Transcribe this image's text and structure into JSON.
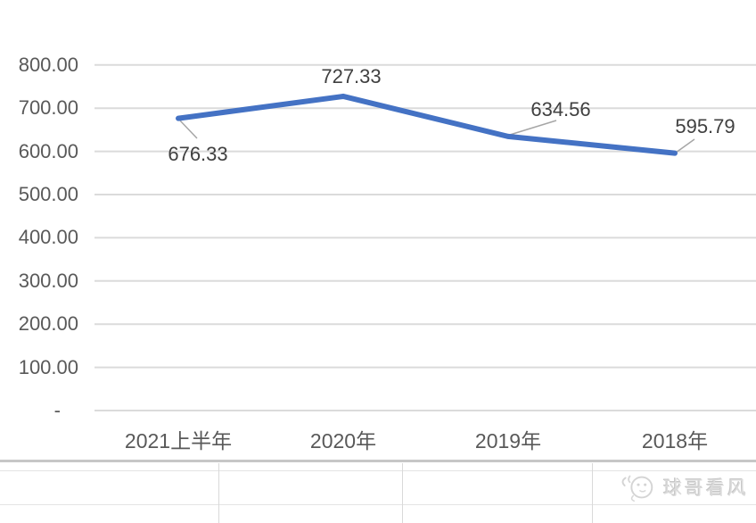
{
  "chart_data": {
    "type": "line",
    "title": "",
    "categories": [
      "2021上半年",
      "2020年",
      "2019年",
      "2018年"
    ],
    "series": [
      {
        "name": "",
        "values": [
          676.33,
          727.33,
          634.56,
          595.79
        ]
      }
    ],
    "data_labels": [
      "676.33",
      "727.33",
      "634.56",
      "595.79"
    ],
    "y_axis": {
      "tick_labels": [
        "800.00",
        "700.00",
        "600.00",
        "500.00",
        "400.00",
        "300.00",
        "200.00",
        "100.00",
        "-"
      ],
      "min": 0,
      "max": 800,
      "interval": 100
    },
    "x_axis": {
      "tick_labels": [
        "2021上半年",
        "2020年",
        "2019年",
        "2018年"
      ]
    },
    "grid": "horizontal",
    "legend": "none",
    "colors": {
      "line": "#4472C4",
      "gridline": "#dbdbdb",
      "axis_label": "#595959",
      "data_label": "#404040",
      "leader_line": "#a6a6a6"
    }
  },
  "watermark": {
    "text": "球哥看风",
    "icon": "mascot-face-icon"
  }
}
